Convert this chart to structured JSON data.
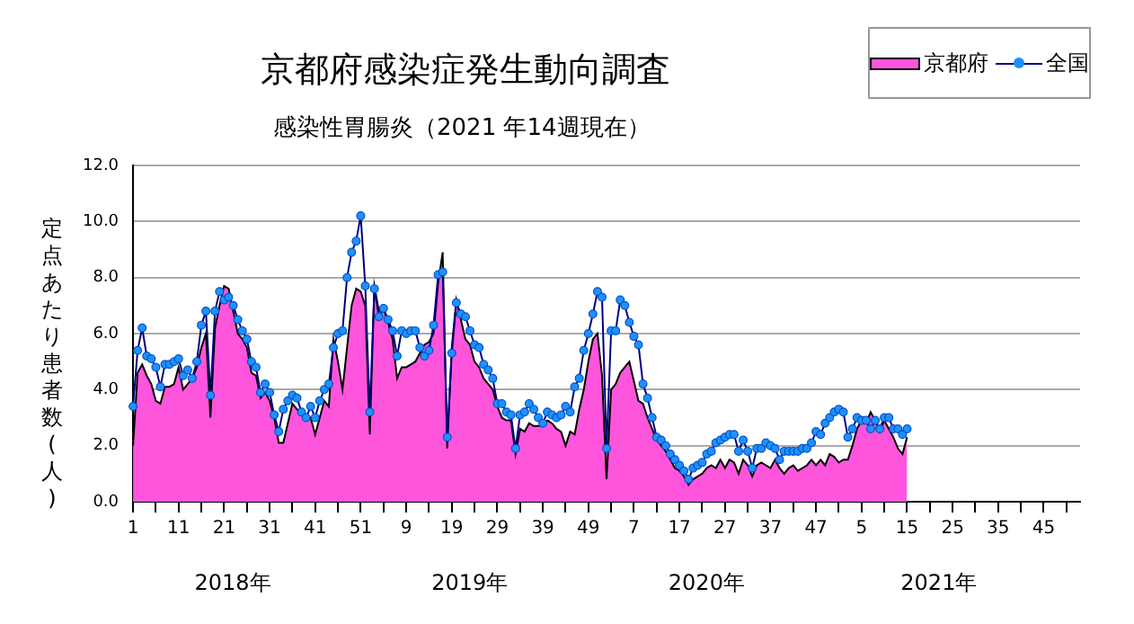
{
  "chart_data": {
    "type": "line",
    "title": "京都府感染症発生動向調査",
    "subtitle": "感染性胃腸炎（2021 年14週現在）",
    "ylabel": "定点あたり患者数(人)",
    "categories": [
      "1",
      null,
      null,
      null,
      null,
      null,
      null,
      null,
      null,
      null,
      "11",
      null,
      null,
      null,
      null,
      null,
      null,
      null,
      null,
      null,
      "21",
      null,
      null,
      null,
      null,
      null,
      null,
      null,
      null,
      null,
      "31",
      null,
      null,
      null,
      null,
      null,
      null,
      null,
      null,
      null,
      "41",
      null,
      null,
      null,
      null,
      null,
      null,
      null,
      null,
      null,
      "51",
      null,
      null,
      null,
      null,
      null,
      null,
      null,
      null,
      null,
      "9",
      null,
      null,
      null,
      null,
      null,
      null,
      null,
      null,
      null,
      "19",
      null,
      null,
      null,
      null,
      null,
      null,
      null,
      null,
      null,
      "29",
      null,
      null,
      null,
      null,
      null,
      null,
      null,
      null,
      null,
      "39",
      null,
      null,
      null,
      null,
      null,
      null,
      null,
      null,
      null,
      "49",
      null,
      null,
      null,
      null,
      null,
      null,
      null,
      null,
      null,
      "7",
      null,
      null,
      null,
      null,
      null,
      null,
      null,
      null,
      null,
      "17",
      null,
      null,
      null,
      null,
      null,
      null,
      null,
      null,
      null,
      "27",
      null,
      null,
      null,
      null,
      null,
      null,
      null,
      null,
      null,
      "37",
      null,
      null,
      null,
      null,
      null,
      null,
      null,
      null,
      null,
      "47",
      null,
      null,
      null,
      null,
      null,
      null,
      null,
      null,
      null,
      "5",
      null,
      null,
      null,
      null,
      null,
      null,
      null,
      null,
      null,
      "15",
      null,
      null,
      null,
      null,
      null,
      null,
      null,
      null,
      null,
      "25",
      null,
      null,
      null,
      null,
      null,
      null,
      null,
      null,
      null,
      "35",
      null,
      null,
      null,
      null,
      null,
      null,
      null,
      null,
      null,
      "45",
      null,
      null,
      null,
      null,
      null,
      null,
      null,
      null
    ],
    "series": [
      {
        "name": "京都府",
        "type": "area",
        "color": "#ff55dd",
        "values": [
          2.0,
          4.6,
          4.9,
          4.5,
          4.2,
          3.6,
          3.5,
          4.1,
          4.1,
          4.2,
          4.8,
          4.0,
          4.2,
          4.4,
          4.8,
          5.5,
          6.0,
          3.0,
          6.2,
          7.0,
          7.7,
          7.6,
          6.8,
          6.0,
          5.8,
          5.5,
          4.6,
          4.5,
          3.7,
          3.9,
          3.6,
          3.0,
          2.1,
          2.1,
          2.8,
          3.5,
          3.3,
          3.2,
          2.9,
          3.0,
          2.4,
          3.0,
          3.6,
          3.4,
          5.8,
          5.0,
          4.0,
          5.5,
          7.0,
          7.6,
          7.5,
          7.0,
          2.4,
          7.7,
          6.8,
          6.9,
          6.4,
          5.8,
          4.4,
          4.8,
          4.8,
          4.9,
          5.0,
          5.3,
          5.6,
          5.7,
          6.0,
          7.8,
          8.9,
          1.9,
          5.5,
          7.2,
          6.5,
          5.8,
          5.6,
          5.0,
          4.8,
          4.4,
          4.2,
          4.0,
          3.4,
          3.0,
          2.9,
          2.9,
          1.7,
          2.6,
          2.5,
          2.8,
          2.7,
          2.7,
          2.7,
          2.9,
          2.8,
          2.6,
          2.5,
          2.0,
          2.5,
          2.4,
          3.3,
          4.0,
          5.0,
          5.8,
          6.0,
          4.5,
          0.8,
          4.0,
          4.2,
          4.6,
          4.8,
          5.0,
          4.3,
          3.6,
          3.5,
          3.0,
          2.6,
          2.2,
          2.0,
          1.8,
          1.5,
          1.2,
          1.1,
          0.9,
          0.6,
          0.8,
          0.9,
          1.0,
          1.2,
          1.3,
          1.2,
          1.5,
          1.2,
          1.5,
          1.4,
          1.0,
          1.5,
          1.3,
          0.9,
          1.3,
          1.4,
          1.3,
          1.2,
          1.5,
          1.2,
          1.0,
          1.2,
          1.3,
          1.1,
          1.2,
          1.3,
          1.5,
          1.3,
          1.5,
          1.3,
          1.7,
          1.6,
          1.4,
          1.5,
          1.5,
          2.0,
          2.6,
          2.9,
          2.8,
          3.2,
          2.9,
          2.5,
          2.9,
          2.6,
          2.3,
          1.9,
          1.7,
          2.3,
          null,
          null,
          null,
          null,
          null,
          null,
          null,
          null,
          null,
          null,
          null,
          null,
          null,
          null,
          null,
          null,
          null,
          null,
          null,
          null,
          null,
          null,
          null,
          null,
          null,
          null,
          null,
          null,
          null,
          null,
          null,
          null,
          null,
          null,
          null,
          null,
          null,
          null
        ]
      },
      {
        "name": "全国",
        "type": "line",
        "color": "#1e90ff",
        "marker": "circle",
        "values": [
          3.4,
          5.4,
          6.2,
          5.2,
          5.1,
          4.8,
          4.1,
          4.9,
          4.9,
          5.0,
          5.1,
          4.5,
          4.7,
          4.4,
          5.0,
          6.3,
          6.8,
          3.8,
          6.8,
          7.5,
          7.2,
          7.3,
          7.0,
          6.5,
          6.1,
          5.8,
          5.0,
          4.8,
          3.9,
          4.2,
          3.9,
          3.1,
          2.5,
          3.3,
          3.6,
          3.8,
          3.7,
          3.2,
          3.0,
          3.4,
          3.0,
          3.6,
          4.0,
          4.2,
          5.5,
          6.0,
          6.1,
          8.0,
          8.9,
          9.3,
          10.2,
          7.7,
          3.2,
          7.6,
          6.6,
          6.9,
          6.5,
          6.1,
          5.2,
          6.1,
          6.0,
          6.1,
          6.1,
          5.5,
          5.2,
          5.4,
          6.3,
          8.1,
          8.2,
          2.3,
          5.3,
          7.1,
          6.7,
          6.6,
          6.1,
          5.6,
          5.5,
          4.9,
          4.7,
          4.4,
          3.5,
          3.5,
          3.2,
          3.1,
          1.9,
          3.1,
          3.2,
          3.5,
          3.3,
          3.0,
          2.8,
          3.2,
          3.1,
          3.0,
          3.1,
          3.4,
          3.2,
          4.1,
          4.4,
          5.4,
          6.0,
          6.7,
          7.5,
          7.3,
          1.9,
          6.1,
          6.1,
          7.2,
          7.0,
          6.4,
          5.9,
          5.6,
          4.2,
          3.7,
          3.0,
          2.3,
          2.2,
          2.0,
          1.7,
          1.5,
          1.3,
          1.1,
          0.8,
          1.2,
          1.3,
          1.4,
          1.7,
          1.8,
          2.1,
          2.2,
          2.3,
          2.4,
          2.4,
          1.8,
          2.2,
          1.8,
          1.2,
          1.9,
          1.9,
          2.1,
          2.0,
          1.9,
          1.5,
          1.8,
          1.8,
          1.8,
          1.8,
          1.9,
          1.9,
          2.1,
          2.5,
          2.4,
          2.8,
          3.0,
          3.2,
          3.3,
          3.2,
          2.3,
          2.6,
          3.0,
          2.9,
          2.9,
          2.6,
          2.9,
          2.6,
          3.0,
          3.0,
          2.6,
          2.6,
          2.4,
          2.6,
          null,
          null,
          null,
          null,
          null,
          null,
          null,
          null,
          null,
          null,
          null,
          null,
          null,
          null,
          null,
          null,
          null,
          null,
          null,
          null,
          null,
          null,
          null,
          null,
          null,
          null,
          null,
          null,
          null,
          null,
          null,
          null,
          null,
          null,
          null,
          null,
          null,
          null
        ]
      }
    ],
    "ylim": [
      0,
      12
    ],
    "yticks": [
      {
        "value": 0,
        "label": "0.0"
      },
      {
        "value": 2,
        "label": "2.0"
      },
      {
        "value": 4,
        "label": "4.0"
      },
      {
        "value": 6,
        "label": "6.0"
      },
      {
        "value": 8,
        "label": "8.0"
      },
      {
        "value": 10,
        "label": "10.0"
      },
      {
        "value": 12,
        "label": "12.0"
      }
    ],
    "grid": "y",
    "legend": "top right",
    "annotations": [
      "2018年",
      "2019年",
      "2020年",
      "2021年"
    ]
  }
}
